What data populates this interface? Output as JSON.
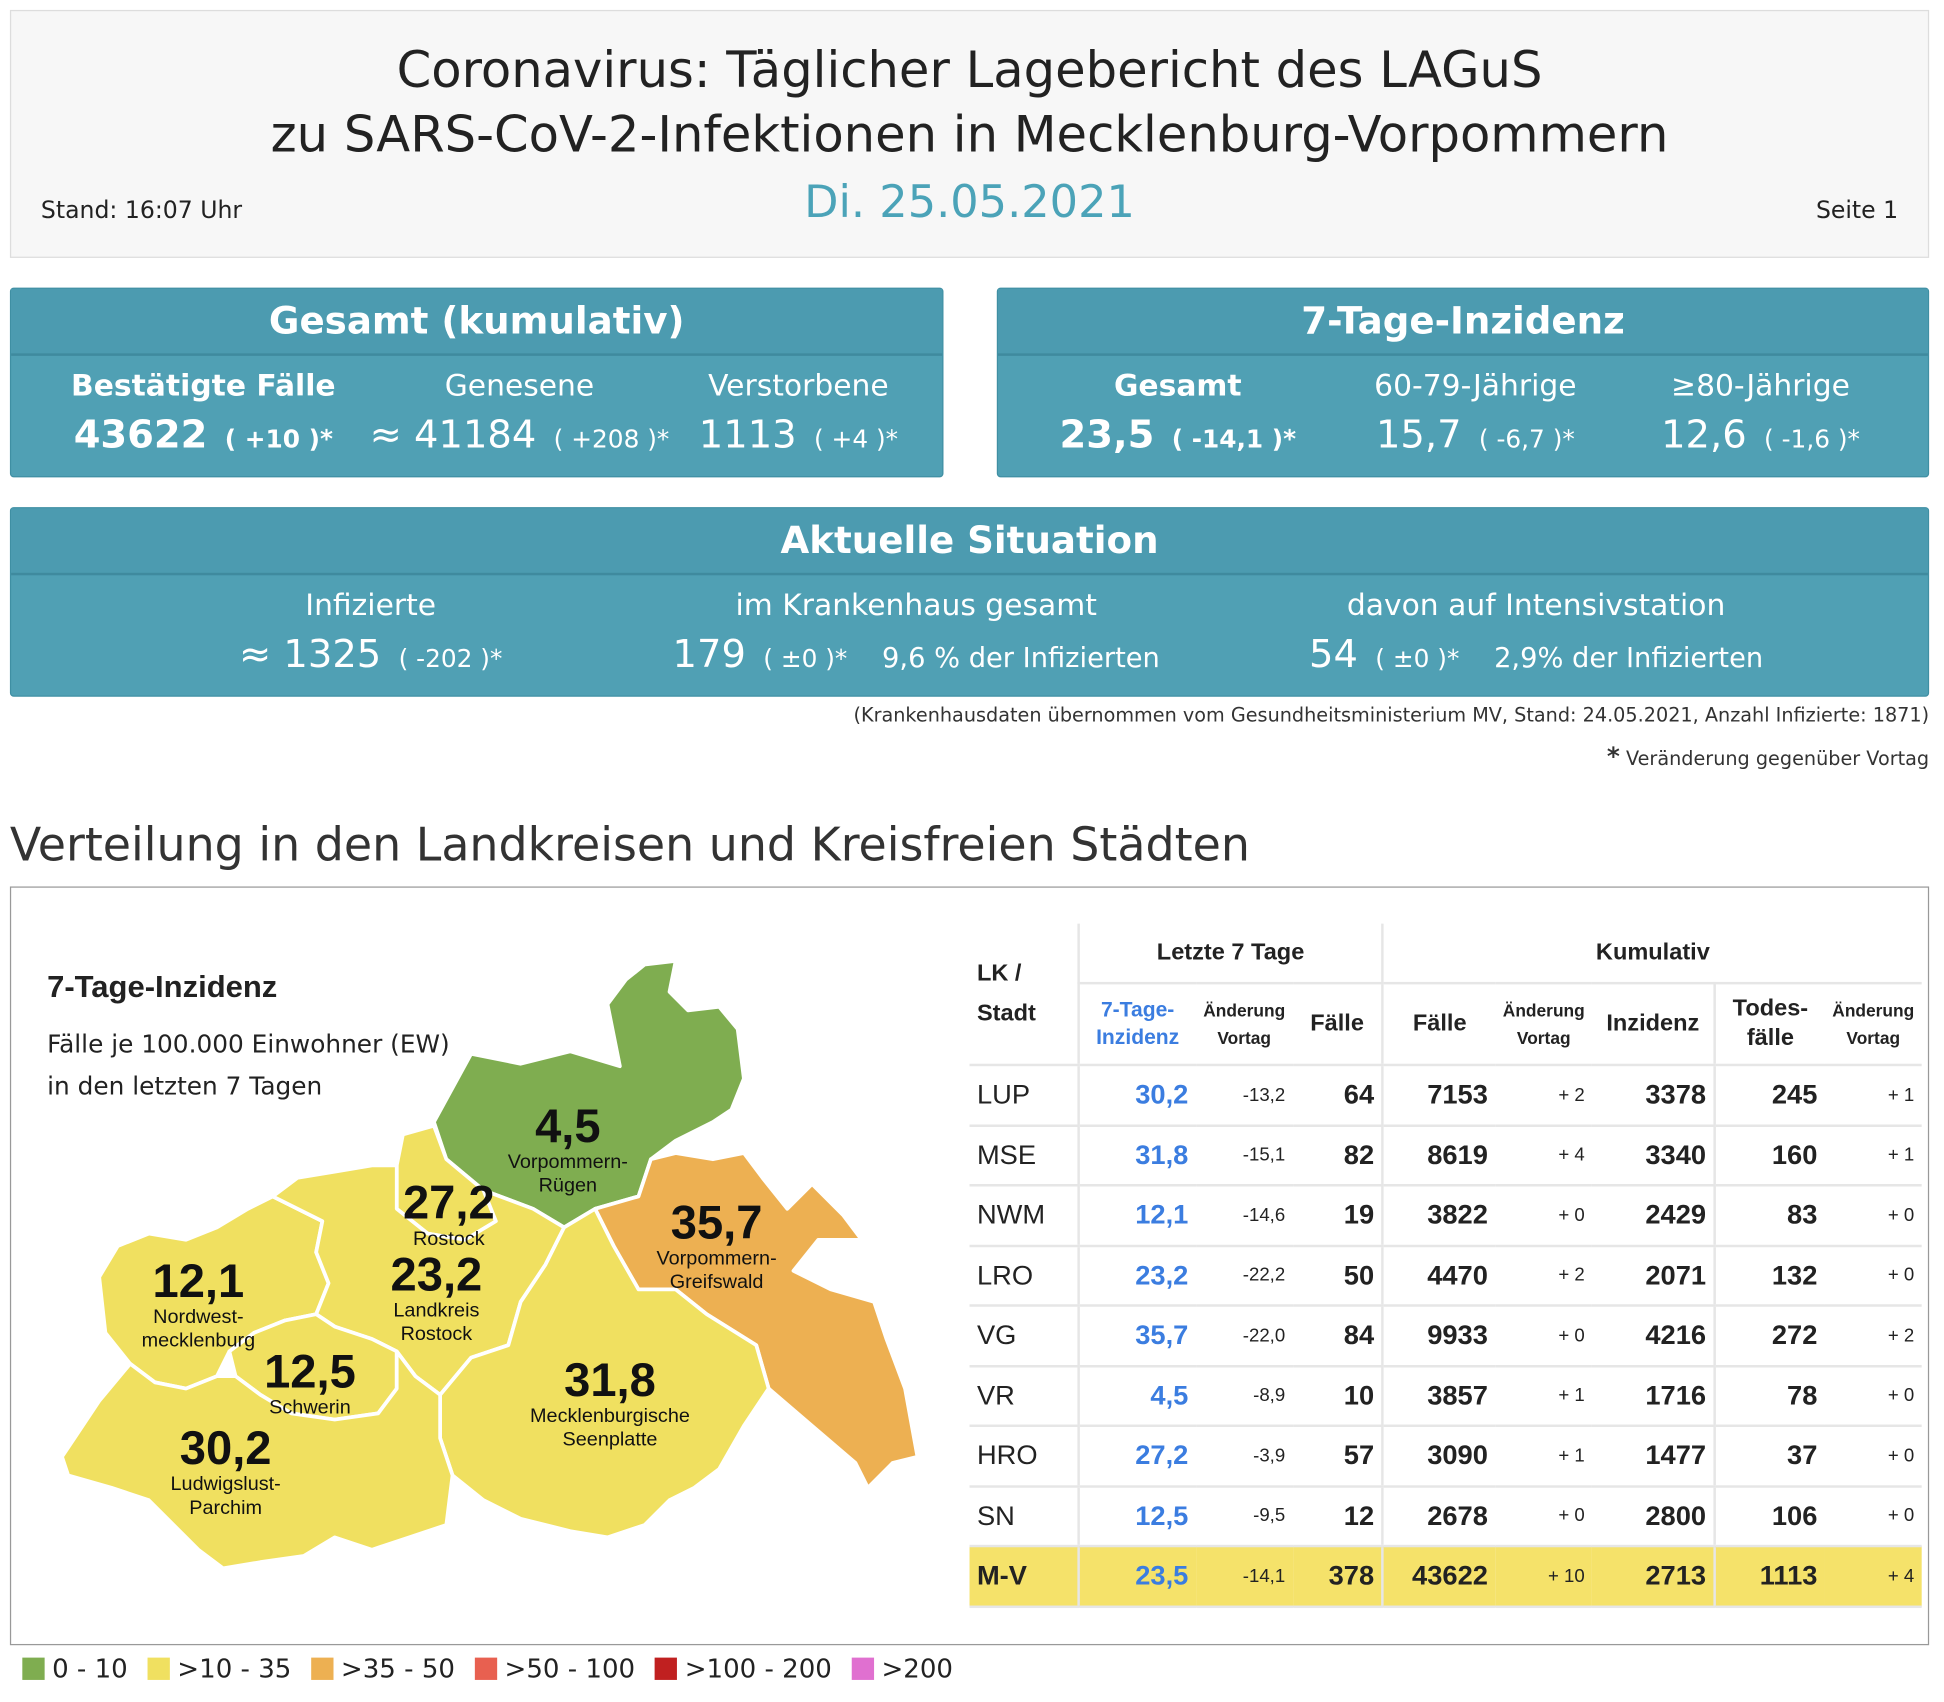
{
  "header": {
    "title_line1": "Coronavirus: Täglicher Lagebericht des LAGuS",
    "title_line2": "zu SARS-CoV-2-Infektionen in Mecklenburg-Vorpommern",
    "date": "Di. 25.05.2021",
    "stand": "Stand: 16:07 Uhr",
    "page": "Seite 1"
  },
  "gesamt": {
    "title": "Gesamt (kumulativ)",
    "cols": [
      {
        "label": "Bestätigte Fälle",
        "value": "43622",
        "change": "( +10 )*"
      },
      {
        "label": "Genesene",
        "value": "≈ 41184",
        "change": "( +208 )*"
      },
      {
        "label": "Verstorbene",
        "value": "1113",
        "change": "( +4 )*"
      }
    ]
  },
  "inzidenz": {
    "title": "7-Tage-Inzidenz",
    "cols": [
      {
        "label": "Gesamt",
        "value": "23,5",
        "change": "( -14,1 )*"
      },
      {
        "label": "60-79-Jährige",
        "value": "15,7",
        "change": "( -6,7 )*"
      },
      {
        "label": "≥80-Jährige",
        "value": "12,6",
        "change": "( -1,6 )*"
      }
    ]
  },
  "aktuell": {
    "title": "Aktuelle Situation",
    "cols": [
      {
        "label": "Infizierte",
        "value": "≈ 1325",
        "change": "( -202 )*",
        "extra": ""
      },
      {
        "label": "im Krankenhaus gesamt",
        "value": "179",
        "change": "( ±0 )*",
        "extra": "9,6 % der Infizierten"
      },
      {
        "label": "davon auf Intensivstation",
        "value": "54",
        "change": "( ±0 )*",
        "extra": "2,9% der Infizierten"
      }
    ]
  },
  "notes": {
    "source": "(Krankenhausdaten übernommen vom Gesundheitsministerium MV, Stand: 24.05.2021, Anzahl Infizierte: 1871)",
    "asterisk": "*",
    "asterisk_text": "Veränderung gegenüber Vortag"
  },
  "section_title": "Verteilung in den Landkreisen und Kreisfreien Städten",
  "map": {
    "title": "7-Tage-Inzidenz",
    "subtitle1": "Fälle je 100.000 Einwohner (EW)",
    "subtitle2": "in den letzten 7 Tagen",
    "regions": [
      {
        "id": "VR",
        "name1": "Vorpommern-",
        "name2": "Rügen",
        "value": "4,5",
        "color": "#7fad50"
      },
      {
        "id": "HRO",
        "name1": "Rostock",
        "name2": "",
        "value": "27,2",
        "color": "#f0e060"
      },
      {
        "id": "VG",
        "name1": "Vorpommern-",
        "name2": "Greifswald",
        "value": "35,7",
        "color": "#edb052"
      },
      {
        "id": "NWM",
        "name1": "Nordwest-",
        "name2": "mecklenburg",
        "value": "12,1",
        "color": "#f0e060"
      },
      {
        "id": "LRO",
        "name1": "Landkreis",
        "name2": "Rostock",
        "value": "23,2",
        "color": "#f0e060"
      },
      {
        "id": "SN",
        "name1": "Schwerin",
        "name2": "",
        "value": "12,5",
        "color": "#f0e060"
      },
      {
        "id": "MSE",
        "name1": "Mecklenburgische",
        "name2": "Seenplatte",
        "value": "31,8",
        "color": "#f0e060"
      },
      {
        "id": "LUP",
        "name1": "Ludwigslust-",
        "name2": "Parchim",
        "value": "30,2",
        "color": "#f0e060"
      }
    ]
  },
  "table": {
    "group_last7": "Letzte 7 Tage",
    "group_cum": "Kumulativ",
    "h_lk": "LK /",
    "h_lk2": "Stadt",
    "h_inz1": "7-Tage-",
    "h_inz2": "Inzidenz",
    "h_chg1": "Änderung",
    "h_chg2": "Vortag",
    "h_faelle": "Fälle",
    "h_inzidenz": "Inzidenz",
    "h_tod1": "Todes-",
    "h_tod2": "fälle",
    "rows": [
      [
        "LUP",
        "30,2",
        "-13,2",
        "64",
        "7153",
        "+ 2",
        "3378",
        "245",
        "+ 1"
      ],
      [
        "MSE",
        "31,8",
        "-15,1",
        "82",
        "8619",
        "+ 4",
        "3340",
        "160",
        "+ 1"
      ],
      [
        "NWM",
        "12,1",
        "-14,6",
        "19",
        "3822",
        "+ 0",
        "2429",
        "83",
        "+ 0"
      ],
      [
        "LRO",
        "23,2",
        "-22,2",
        "50",
        "4470",
        "+ 2",
        "2071",
        "132",
        "+ 0"
      ],
      [
        "VG",
        "35,7",
        "-22,0",
        "84",
        "9933",
        "+ 0",
        "4216",
        "272",
        "+ 2"
      ],
      [
        "VR",
        "4,5",
        "-8,9",
        "10",
        "3857",
        "+ 1",
        "1716",
        "78",
        "+ 0"
      ],
      [
        "HRO",
        "27,2",
        "-3,9",
        "57",
        "3090",
        "+ 1",
        "1477",
        "37",
        "+ 0"
      ],
      [
        "SN",
        "12,5",
        "-9,5",
        "12",
        "2678",
        "+ 0",
        "2800",
        "106",
        "+ 0"
      ]
    ],
    "total": [
      "M-V",
      "23,5",
      "-14,1",
      "378",
      "43622",
      "+ 10",
      "2713",
      "1113",
      "+ 4"
    ]
  },
  "legend": [
    {
      "label": "0 - 10",
      "color": "#7fad50"
    },
    {
      "label": ">10 - 35",
      "color": "#f0e060"
    },
    {
      "label": ">35 - 50",
      "color": "#edb052"
    },
    {
      "label": ">50 - 100",
      "color": "#e86050"
    },
    {
      "label": ">100 - 200",
      "color": "#c02020"
    },
    {
      "label": ">200",
      "color": "#e070d0"
    }
  ],
  "colors": {
    "accent": "#50a0b4",
    "date": "#4ba3b8",
    "incidence_blue": "#3b7de0",
    "total_row": "#f5e26a"
  }
}
